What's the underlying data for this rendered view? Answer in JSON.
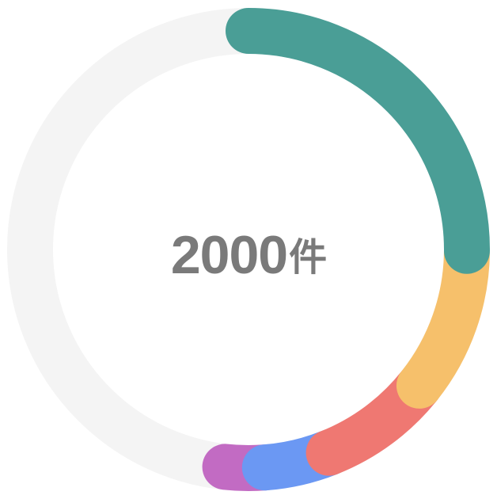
{
  "chart_data": {
    "type": "pie",
    "style": "donut",
    "total": {
      "value": "2000",
      "unit": "件"
    },
    "track_color": "#f4f4f4",
    "slices": [
      {
        "value": 25.1,
        "color": "#4a9e96"
      },
      {
        "value": 10.6,
        "color": "#f6c06b"
      },
      {
        "value": 8.3,
        "color": "#ef7872"
      },
      {
        "value": 4.8,
        "color": "#6b98f3"
      },
      {
        "value": 2.9,
        "color": "#c26bc3"
      }
    ]
  }
}
